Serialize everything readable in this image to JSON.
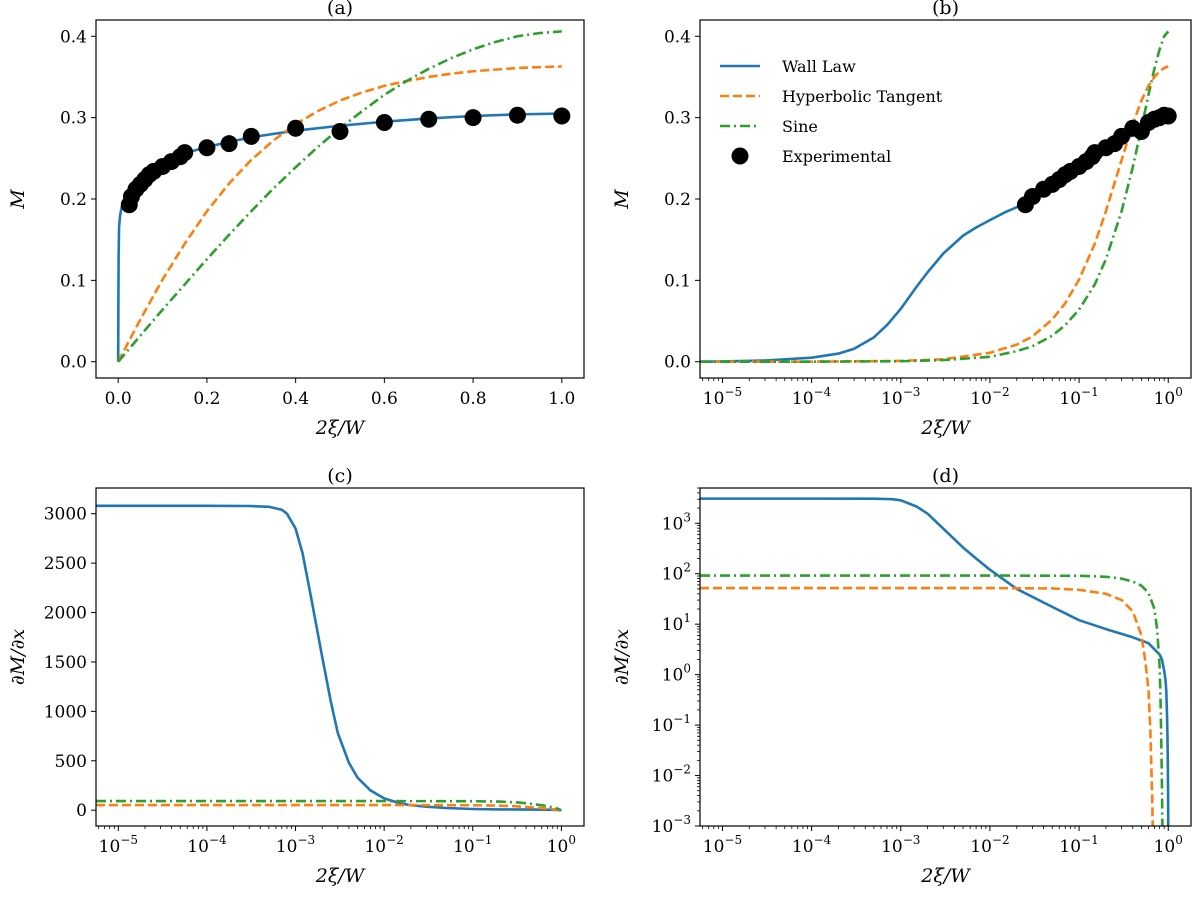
{
  "colors": {
    "wall_law": "#1f77b4",
    "hyperbolic_tangent": "#ff7f0e",
    "sine": "#2ca02c",
    "experimental": "#000000"
  },
  "legend": {
    "location": "top-left of panel (b)",
    "entries": [
      "Wall Law",
      "Hyperbolic Tangent",
      "Sine",
      "Experimental"
    ]
  },
  "chart_data": [
    {
      "id": "a",
      "title": "(a)",
      "type": "line",
      "xlabel": "2ξ/W",
      "ylabel": "M",
      "xscale": "linear",
      "yscale": "linear",
      "xlim": [
        -0.05,
        1.05
      ],
      "ylim": [
        -0.02,
        0.42
      ],
      "xticks": [
        0.0,
        0.2,
        0.4,
        0.6,
        0.8,
        1.0
      ],
      "xtick_labels": [
        "0.0",
        "0.2",
        "0.4",
        "0.6",
        "0.8",
        "1.0"
      ],
      "yticks": [
        0.0,
        0.1,
        0.2,
        0.3,
        0.4
      ],
      "ytick_labels": [
        "0.0",
        "0.1",
        "0.2",
        "0.3",
        "0.4"
      ],
      "series": [
        {
          "name": "Wall Law",
          "style": "solid",
          "color_key": "wall_law",
          "x": [
            0,
            0.0005,
            0.001,
            0.002,
            0.004,
            0.006,
            0.008,
            0.01,
            0.015,
            0.02,
            0.03,
            0.04,
            0.05,
            0.07,
            0.1,
            0.15,
            0.2,
            0.3,
            0.4,
            0.5,
            0.6,
            0.7,
            0.8,
            0.9,
            1.0
          ],
          "y": [
            0,
            0.08,
            0.13,
            0.165,
            0.178,
            0.185,
            0.19,
            0.194,
            0.2,
            0.205,
            0.213,
            0.22,
            0.226,
            0.236,
            0.246,
            0.256,
            0.264,
            0.276,
            0.284,
            0.29,
            0.295,
            0.299,
            0.302,
            0.304,
            0.305
          ]
        },
        {
          "name": "Hyperbolic Tangent",
          "style": "dashed",
          "color_key": "hyperbolic_tangent",
          "x": [
            0,
            0.05,
            0.1,
            0.15,
            0.2,
            0.25,
            0.3,
            0.35,
            0.4,
            0.45,
            0.5,
            0.55,
            0.6,
            0.65,
            0.7,
            0.75,
            0.8,
            0.85,
            0.9,
            0.95,
            1.0
          ],
          "y": [
            0,
            0.052,
            0.101,
            0.145,
            0.185,
            0.219,
            0.248,
            0.272,
            0.292,
            0.308,
            0.321,
            0.331,
            0.339,
            0.345,
            0.35,
            0.354,
            0.357,
            0.359,
            0.361,
            0.362,
            0.363
          ]
        },
        {
          "name": "Sine",
          "style": "dashdot",
          "color_key": "sine",
          "x": [
            0,
            0.05,
            0.1,
            0.15,
            0.2,
            0.25,
            0.3,
            0.35,
            0.4,
            0.45,
            0.5,
            0.55,
            0.6,
            0.65,
            0.7,
            0.75,
            0.8,
            0.85,
            0.9,
            0.95,
            1.0
          ],
          "y": [
            0,
            0.032,
            0.064,
            0.095,
            0.126,
            0.156,
            0.185,
            0.213,
            0.239,
            0.264,
            0.287,
            0.308,
            0.328,
            0.345,
            0.36,
            0.373,
            0.384,
            0.393,
            0.4,
            0.404,
            0.406
          ]
        },
        {
          "name": "Experimental",
          "style": "markers",
          "color_key": "experimental",
          "x": [
            0.025,
            0.03,
            0.04,
            0.05,
            0.06,
            0.07,
            0.08,
            0.1,
            0.12,
            0.14,
            0.15,
            0.2,
            0.25,
            0.3,
            0.4,
            0.5,
            0.6,
            0.7,
            0.8,
            0.9,
            1.0
          ],
          "y": [
            0.193,
            0.203,
            0.212,
            0.218,
            0.224,
            0.23,
            0.234,
            0.24,
            0.246,
            0.252,
            0.257,
            0.263,
            0.268,
            0.277,
            0.287,
            0.283,
            0.294,
            0.298,
            0.3,
            0.303,
            0.302
          ]
        }
      ]
    },
    {
      "id": "b",
      "title": "(b)",
      "type": "line",
      "xlabel": "2ξ/W",
      "ylabel": "M",
      "xscale": "log",
      "yscale": "linear",
      "xlim": [
        5.6e-06,
        1.8
      ],
      "ylim": [
        -0.02,
        0.42
      ],
      "xticks": [
        1e-05,
        0.0001,
        0.001,
        0.01,
        0.1,
        1
      ],
      "xtick_labels": [
        [
          "10",
          "−5"
        ],
        [
          "10",
          "−4"
        ],
        [
          "10",
          "−3"
        ],
        [
          "10",
          "−2"
        ],
        [
          "10",
          "−1"
        ],
        [
          "10",
          "0"
        ]
      ],
      "yticks": [
        0.0,
        0.1,
        0.2,
        0.3,
        0.4
      ],
      "ytick_labels": [
        "0.0",
        "0.1",
        "0.2",
        "0.3",
        "0.4"
      ],
      "series": [
        {
          "name": "Wall Law",
          "style": "solid",
          "color_key": "wall_law",
          "x": [
            5.6e-06,
            1e-05,
            3e-05,
            0.0001,
            0.0002,
            0.0003,
            0.0005,
            0.0007,
            0.001,
            0.0015,
            0.002,
            0.003,
            0.005,
            0.007,
            0.01,
            0.015,
            0.02,
            0.03,
            0.05,
            0.07,
            0.1,
            0.15,
            0.2,
            0.3,
            0.5,
            0.7,
            1.0
          ],
          "y": [
            0,
            0.0004,
            0.0015,
            0.005,
            0.01,
            0.016,
            0.03,
            0.045,
            0.065,
            0.092,
            0.11,
            0.133,
            0.155,
            0.165,
            0.174,
            0.184,
            0.19,
            0.198,
            0.212,
            0.222,
            0.235,
            0.248,
            0.257,
            0.27,
            0.286,
            0.297,
            0.305
          ]
        },
        {
          "name": "Hyperbolic Tangent",
          "style": "dashed",
          "color_key": "hyperbolic_tangent",
          "x": [
            5.6e-06,
            0.0001,
            0.001,
            0.003,
            0.01,
            0.02,
            0.03,
            0.05,
            0.07,
            0.1,
            0.15,
            0.2,
            0.3,
            0.4,
            0.5,
            0.6,
            0.7,
            0.8,
            0.9,
            1.0
          ],
          "y": [
            0,
            0.0001,
            0.001,
            0.003,
            0.011,
            0.021,
            0.031,
            0.052,
            0.072,
            0.101,
            0.145,
            0.185,
            0.248,
            0.292,
            0.321,
            0.339,
            0.35,
            0.357,
            0.361,
            0.363
          ]
        },
        {
          "name": "Sine",
          "style": "dashdot",
          "color_key": "sine",
          "x": [
            5.6e-06,
            0.0001,
            0.001,
            0.003,
            0.01,
            0.02,
            0.03,
            0.05,
            0.07,
            0.1,
            0.15,
            0.2,
            0.3,
            0.4,
            0.5,
            0.6,
            0.7,
            0.8,
            0.9,
            1.0
          ],
          "y": [
            0,
            0.0001,
            0.0006,
            0.002,
            0.006,
            0.013,
            0.019,
            0.032,
            0.045,
            0.064,
            0.095,
            0.126,
            0.185,
            0.239,
            0.287,
            0.328,
            0.36,
            0.384,
            0.4,
            0.406
          ]
        },
        {
          "name": "Experimental",
          "style": "markers",
          "color_key": "experimental",
          "x": [
            0.025,
            0.03,
            0.04,
            0.05,
            0.06,
            0.07,
            0.08,
            0.1,
            0.12,
            0.14,
            0.15,
            0.2,
            0.25,
            0.3,
            0.4,
            0.5,
            0.6,
            0.7,
            0.8,
            0.9,
            1.0
          ],
          "y": [
            0.193,
            0.203,
            0.212,
            0.218,
            0.224,
            0.23,
            0.234,
            0.24,
            0.246,
            0.252,
            0.257,
            0.263,
            0.268,
            0.277,
            0.287,
            0.283,
            0.294,
            0.298,
            0.3,
            0.303,
            0.302
          ]
        }
      ]
    },
    {
      "id": "c",
      "title": "(c)",
      "type": "line",
      "xlabel": "2ξ/W",
      "ylabel": "∂M/∂x",
      "xscale": "log",
      "yscale": "linear",
      "xlim": [
        5.6e-06,
        1.8
      ],
      "ylim": [
        -160,
        3260
      ],
      "xticks": [
        1e-05,
        0.0001,
        0.001,
        0.01,
        0.1,
        1
      ],
      "xtick_labels": [
        [
          "10",
          "−5"
        ],
        [
          "10",
          "−4"
        ],
        [
          "10",
          "−3"
        ],
        [
          "10",
          "−2"
        ],
        [
          "10",
          "−1"
        ],
        [
          "10",
          "0"
        ]
      ],
      "yticks": [
        0,
        500,
        1000,
        1500,
        2000,
        2500,
        3000
      ],
      "ytick_labels": [
        "0",
        "500",
        "1000",
        "1500",
        "2000",
        "2500",
        "3000"
      ],
      "series": [
        {
          "name": "Wall Law",
          "style": "solid",
          "color_key": "wall_law",
          "x": [
            5.6e-06,
            1e-05,
            0.0001,
            0.0003,
            0.0005,
            0.0007,
            0.0008,
            0.001,
            0.0012,
            0.0015,
            0.002,
            0.0025,
            0.003,
            0.004,
            0.005,
            0.007,
            0.01,
            0.015,
            0.02,
            0.03,
            0.05,
            0.1,
            0.2,
            0.5,
            0.8,
            1.0
          ],
          "y": [
            3080,
            3080,
            3080,
            3078,
            3070,
            3040,
            3000,
            2850,
            2600,
            2150,
            1550,
            1100,
            780,
            480,
            330,
            200,
            120,
            70,
            50,
            35,
            22,
            12,
            8,
            6,
            4,
            0
          ]
        },
        {
          "name": "Hyperbolic Tangent",
          "style": "dashed",
          "color_key": "hyperbolic_tangent",
          "x": [
            5.6e-06,
            0.001,
            0.01,
            0.1,
            0.2,
            0.3,
            0.4,
            0.5,
            0.6,
            0.7,
            0.8,
            0.9,
            1.0
          ],
          "y": [
            52,
            52,
            52,
            50,
            46,
            40,
            33,
            26,
            20,
            14,
            9,
            5,
            1
          ]
        },
        {
          "name": "Sine",
          "style": "dashdot",
          "color_key": "sine",
          "x": [
            5.6e-06,
            0.001,
            0.01,
            0.1,
            0.2,
            0.3,
            0.4,
            0.5,
            0.6,
            0.7,
            0.8,
            0.9,
            0.95,
            1.0
          ],
          "y": [
            92,
            92,
            92,
            91,
            87,
            80,
            71,
            60,
            50,
            40,
            29,
            17,
            8,
            0
          ]
        }
      ]
    },
    {
      "id": "d",
      "title": "(d)",
      "type": "line",
      "xlabel": "2ξ/W",
      "ylabel": "∂M/∂x",
      "xscale": "log",
      "yscale": "log",
      "xlim": [
        5.6e-06,
        1.8
      ],
      "ylim": [
        0.001,
        5000
      ],
      "xticks": [
        1e-05,
        0.0001,
        0.001,
        0.01,
        0.1,
        1
      ],
      "xtick_labels": [
        [
          "10",
          "−5"
        ],
        [
          "10",
          "−4"
        ],
        [
          "10",
          "−3"
        ],
        [
          "10",
          "−2"
        ],
        [
          "10",
          "−1"
        ],
        [
          "10",
          "0"
        ]
      ],
      "yticks": [
        0.001,
        0.01,
        0.1,
        1,
        10,
        100,
        1000
      ],
      "ytick_labels": [
        [
          "10",
          "−3"
        ],
        [
          "10",
          "−2"
        ],
        [
          "10",
          "−1"
        ],
        [
          "10",
          "0"
        ],
        [
          "10",
          "1"
        ],
        [
          "10",
          "2"
        ],
        [
          "10",
          "3"
        ]
      ],
      "series": [
        {
          "name": "Wall Law",
          "style": "solid",
          "color_key": "wall_law",
          "x": [
            5.6e-06,
            0.0001,
            0.0005,
            0.0008,
            0.001,
            0.0015,
            0.002,
            0.003,
            0.005,
            0.007,
            0.01,
            0.02,
            0.05,
            0.1,
            0.2,
            0.4,
            0.6,
            0.8,
            0.85,
            0.9,
            0.93,
            0.95,
            0.97,
            0.98,
            0.99,
            0.995,
            1.0
          ],
          "y": [
            3080,
            3080,
            3070,
            3000,
            2850,
            2150,
            1550,
            780,
            330,
            200,
            120,
            50,
            22,
            12,
            8,
            5.5,
            4.2,
            2.5,
            2.0,
            1.2,
            0.8,
            0.5,
            0.15,
            0.06,
            0.015,
            0.005,
            0.001
          ]
        },
        {
          "name": "Hyperbolic Tangent",
          "style": "dashed",
          "color_key": "hyperbolic_tangent",
          "x": [
            5.6e-06,
            0.001,
            0.01,
            0.05,
            0.1,
            0.2,
            0.3,
            0.4,
            0.5,
            0.55,
            0.6,
            0.63,
            0.65,
            0.66,
            0.67
          ],
          "y": [
            52,
            52,
            52,
            51,
            48,
            40,
            30,
            18,
            6,
            2.0,
            0.5,
            0.08,
            0.01,
            0.004,
            0.001
          ]
        },
        {
          "name": "Sine",
          "style": "dashdot",
          "color_key": "sine",
          "x": [
            5.6e-06,
            0.001,
            0.01,
            0.1,
            0.2,
            0.3,
            0.4,
            0.5,
            0.6,
            0.7,
            0.75,
            0.8,
            0.82,
            0.84,
            0.85,
            0.86
          ],
          "y": [
            92,
            92,
            92,
            91,
            87,
            80,
            70,
            58,
            42,
            20,
            8,
            1.5,
            0.3,
            0.03,
            0.006,
            0.001
          ]
        }
      ]
    }
  ]
}
